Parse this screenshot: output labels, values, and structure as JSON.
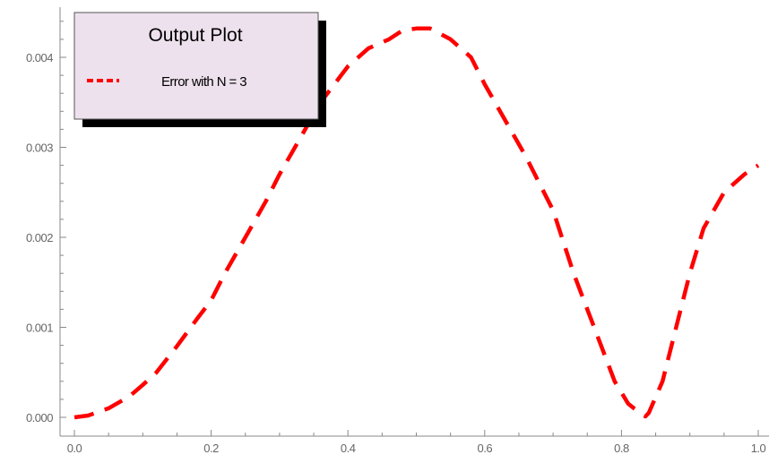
{
  "chart_data": {
    "type": "line",
    "title": "",
    "xlabel": "",
    "ylabel": "",
    "xlim": [
      0.0,
      1.0
    ],
    "ylim": [
      0.0,
      0.0044
    ],
    "x_ticks": [
      0.0,
      0.2,
      0.4,
      0.6,
      0.8,
      1.0
    ],
    "x_tick_labels": [
      "0.0",
      "0.2",
      "0.4",
      "0.6",
      "0.8",
      "1.0"
    ],
    "y_ticks": [
      0.0,
      0.001,
      0.002,
      0.003,
      0.004
    ],
    "y_tick_labels": [
      "0.000",
      "0.001",
      "0.002",
      "0.003",
      "0.004"
    ],
    "grid": false,
    "legend": {
      "title": "Output Plot",
      "placement": "top-left",
      "entries": [
        {
          "label": "Error with N = 3",
          "style": "dashed",
          "color": "#ff0000"
        }
      ],
      "background": "#ede1ed"
    },
    "series": [
      {
        "name": "Error with N = 3",
        "color": "#ff0000",
        "line_style": "dashed",
        "x": [
          0.0,
          0.02,
          0.05,
          0.08,
          0.1,
          0.12,
          0.15,
          0.18,
          0.2,
          0.22,
          0.25,
          0.28,
          0.3,
          0.33,
          0.36,
          0.4,
          0.43,
          0.46,
          0.48,
          0.5,
          0.52,
          0.55,
          0.58,
          0.6,
          0.63,
          0.66,
          0.7,
          0.73,
          0.76,
          0.79,
          0.81,
          0.83,
          0.835,
          0.84,
          0.86,
          0.88,
          0.9,
          0.92,
          0.95,
          0.98,
          1.0
        ],
        "y": [
          0.0,
          2e-05,
          0.0001,
          0.00023,
          0.00036,
          0.0005,
          0.00079,
          0.0011,
          0.0013,
          0.0016,
          0.002,
          0.0024,
          0.0027,
          0.0031,
          0.0035,
          0.0039,
          0.0041,
          0.0042,
          0.0043,
          0.00432,
          0.00432,
          0.0042,
          0.004,
          0.0037,
          0.0033,
          0.0029,
          0.0023,
          0.0016,
          0.001,
          0.0004,
          0.00015,
          3e-05,
          1e-05,
          5e-05,
          0.0004,
          0.001,
          0.0016,
          0.0021,
          0.0025,
          0.0027,
          0.0028
        ]
      }
    ]
  }
}
